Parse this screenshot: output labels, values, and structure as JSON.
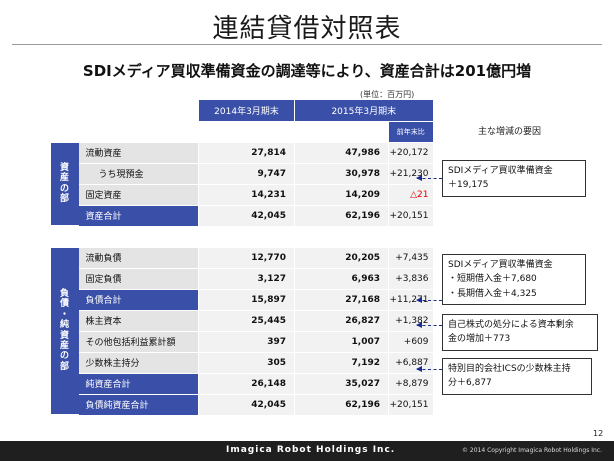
{
  "title": "連結貸借対照表",
  "subtitle": "SDIメディア買収準備資金の調達等により、資産合計は201億円増",
  "unit": "(単位：百万円)",
  "columns": {
    "c1": "2014年3月期末",
    "c2": "2015年3月期末",
    "yoy": "前年末比"
  },
  "sections": {
    "assets": "資産の部",
    "liabilities": "負債・純資産の部"
  },
  "rows": [
    {
      "label": "流動資産",
      "v2014": "27,814",
      "v2015": "47,986",
      "change": "+20,172"
    },
    {
      "label": "うち現預金",
      "v2014": "9,747",
      "v2015": "30,978",
      "change": "+21,230"
    },
    {
      "label": "固定資産",
      "v2014": "14,231",
      "v2015": "14,209",
      "change": "△21"
    },
    {
      "label": "資産合計",
      "v2014": "42,045",
      "v2015": "62,196",
      "change": "+20,151"
    },
    {
      "label": "流動負債",
      "v2014": "12,770",
      "v2015": "20,205",
      "change": "+7,435"
    },
    {
      "label": "固定負債",
      "v2014": "3,127",
      "v2015": "6,963",
      "change": "+3,836"
    },
    {
      "label": "負債合計",
      "v2014": "15,897",
      "v2015": "27,168",
      "change": "+11,271"
    },
    {
      "label": "株主資本",
      "v2014": "25,445",
      "v2015": "26,827",
      "change": "+1,382"
    },
    {
      "label": "その他包括利益累計額",
      "v2014": "397",
      "v2015": "1,007",
      "change": "+609"
    },
    {
      "label": "少数株主持分",
      "v2014": "305",
      "v2015": "7,192",
      "change": "+6,887"
    },
    {
      "label": "純資産合計",
      "v2014": "26,148",
      "v2015": "35,027",
      "change": "+8,879"
    },
    {
      "label": "負債純資産合計",
      "v2014": "42,045",
      "v2015": "62,196",
      "change": "+20,151"
    }
  ],
  "notes": {
    "title": "主な増減の要因",
    "n1": {
      "line1": "SDIメディア買収準備資金",
      "line2": "＋19,175"
    },
    "n2": {
      "line1": "SDIメディア買収準備資金",
      "line2": "・短期借入金＋7,680",
      "line3": "・長期借入金＋4,325"
    },
    "n3": {
      "line1": "自己株式の処分による資本剰余",
      "line2": "金の増加＋773"
    },
    "n4": {
      "line1": "特別目的会社ICSの少数株主持",
      "line2": "分＋6,877"
    }
  },
  "page_number": "12",
  "footer": {
    "logo": "Imagica Robot Holdings Inc.",
    "copyright": "© 2014 Copyright Imagica Robot Holdings Inc."
  },
  "colors": {
    "header_blue": "#3a4fa8",
    "label_gray": "#e4e4e4",
    "cell_gray": "#f2f2f2",
    "negative_red": "#e00000",
    "arrow_navy": "#1b2d8c"
  }
}
